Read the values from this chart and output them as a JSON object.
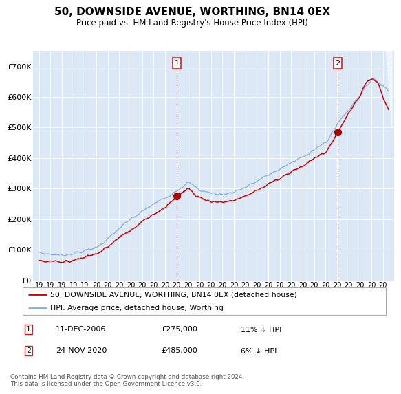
{
  "title": "50, DOWNSIDE AVENUE, WORTHING, BN14 0EX",
  "subtitle": "Price paid vs. HM Land Registry's House Price Index (HPI)",
  "title_fontsize": 11,
  "subtitle_fontsize": 9,
  "legend_entries": [
    "50, DOWNSIDE AVENUE, WORTHING, BN14 0EX (detached house)",
    "HPI: Average price, detached house, Worthing"
  ],
  "line_colors": [
    "#cc0000",
    "#88aadd"
  ],
  "sale1_idx": 144,
  "sale1_price": 275000,
  "sale1_date": "11-DEC-2006",
  "sale1_note": "11% ↓ HPI",
  "sale2_idx": 312,
  "sale2_price": 485000,
  "sale2_date": "24-NOV-2020",
  "sale2_note": "6% ↓ HPI",
  "footer": "Contains HM Land Registry data © Crown copyright and database right 2024.\nThis data is licensed under the Open Government Licence v3.0.",
  "plot_bg_color": "#dce8f5",
  "ylim": [
    0,
    750000
  ],
  "yticks": [
    0,
    100000,
    200000,
    300000,
    400000,
    500000,
    600000,
    700000
  ],
  "ytick_labels": [
    "£0",
    "£100K",
    "£200K",
    "£300K",
    "£400K",
    "£500K",
    "£600K",
    "£700K"
  ],
  "n_months": 366,
  "year_start": 1995,
  "year_end": 2025.5
}
